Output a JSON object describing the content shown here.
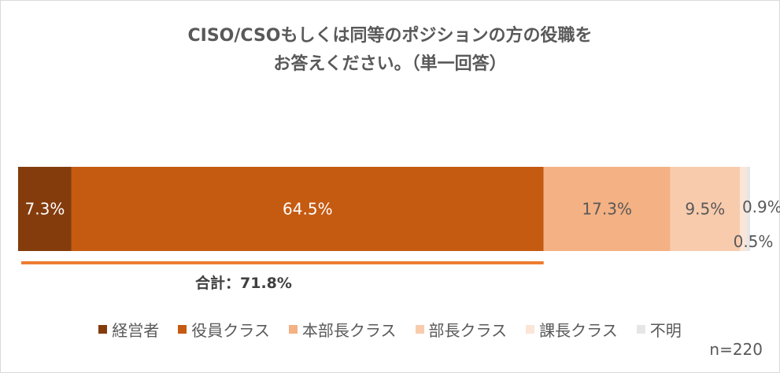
{
  "chart_data": {
    "type": "bar",
    "orientation": "horizontal-stacked-100",
    "title_line1": "CISO/CSOもしくは同等のポジションの方の役職を",
    "title_line2": "お答えください。（単一回答）",
    "series": [
      {
        "name": "経営者",
        "value": 7.3,
        "label": "7.3%",
        "color": "#843c0c"
      },
      {
        "name": "役員クラス",
        "value": 64.5,
        "label": "64.5%",
        "color": "#c55a11"
      },
      {
        "name": "本部長クラス",
        "value": 17.3,
        "label": "17.3%",
        "color": "#f4b183"
      },
      {
        "name": "部長クラス",
        "value": 9.5,
        "label": "9.5%",
        "color": "#f8cbad"
      },
      {
        "name": "課長クラス",
        "value": 0.9,
        "label": "0.9%",
        "color": "#fbe5d6"
      },
      {
        "name": "不明",
        "value": 0.5,
        "label": "0.5%",
        "color": "#e7e6e6"
      }
    ],
    "total_label": "合計：71.8%",
    "total_bracket_color": "#ed7d31",
    "n_label": "n=220",
    "legend_position": "bottom"
  }
}
